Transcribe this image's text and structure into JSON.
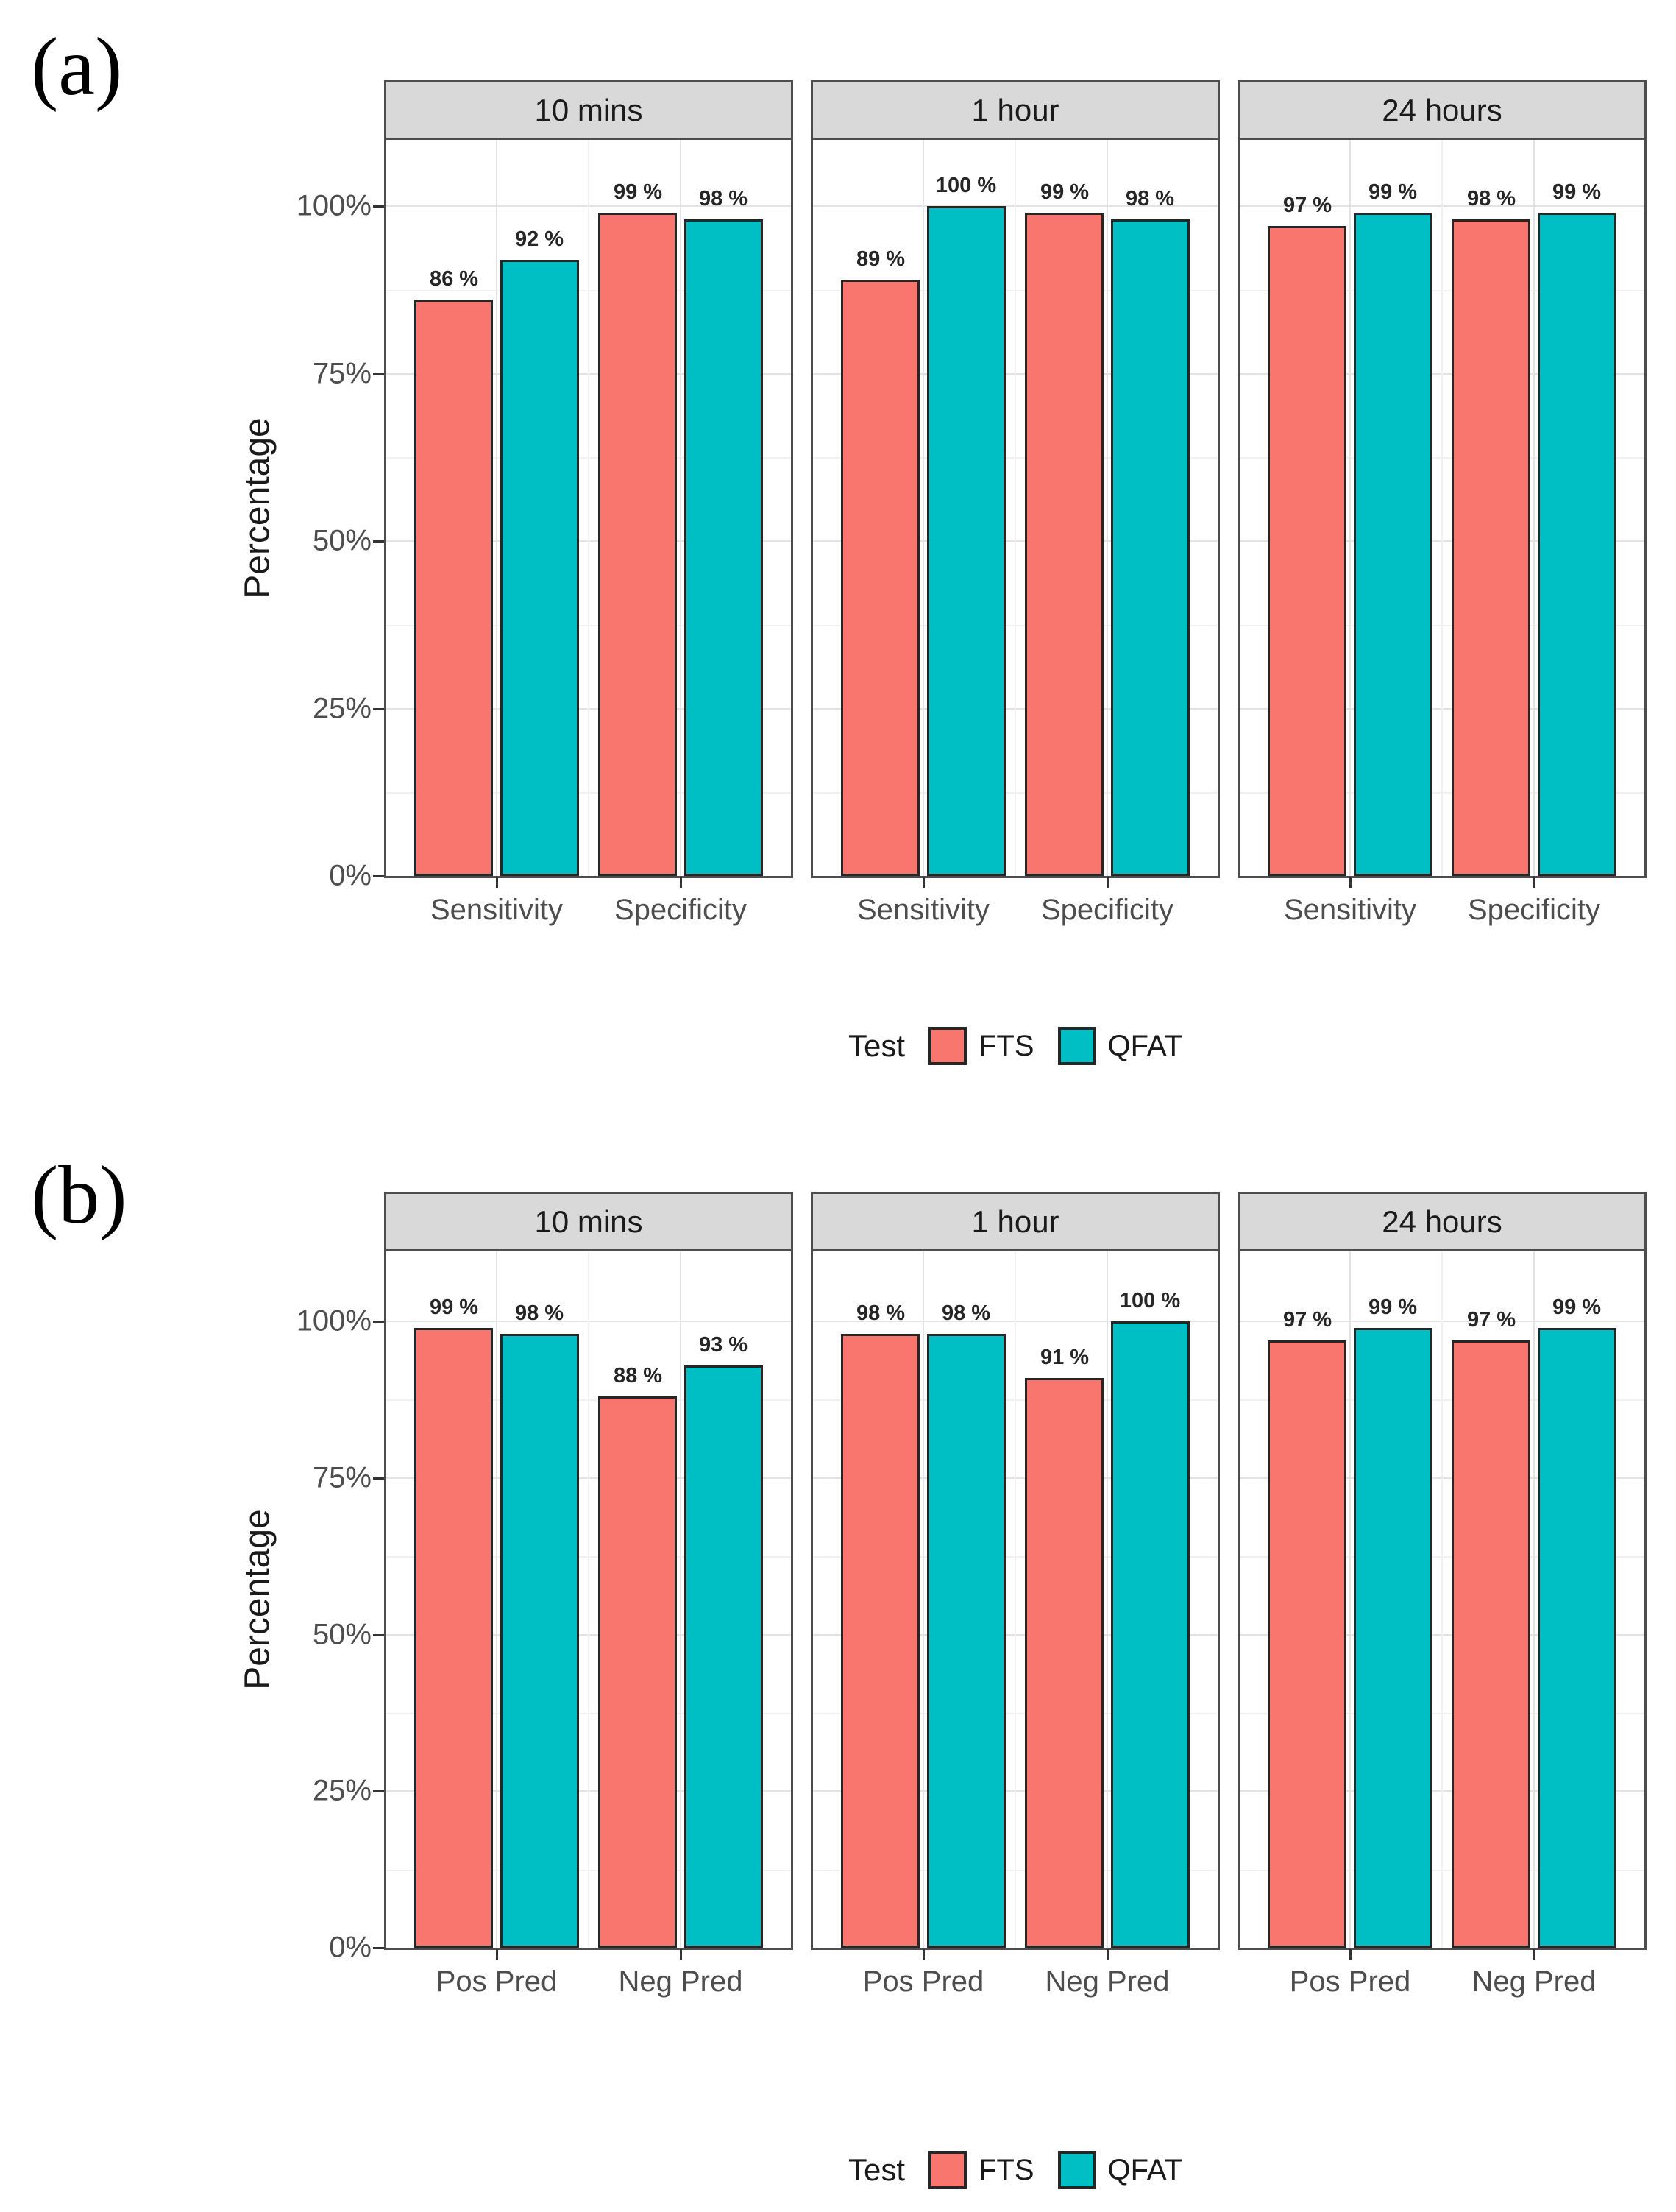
{
  "colors": {
    "fts": "#F8766D",
    "qfat": "#00BFC4",
    "bar_border": "#262626",
    "strip_fill": "#D9D9D9",
    "strip_border": "#4D4D4D",
    "panel_border": "#4D4D4D",
    "grid_major": "#E3E3E3",
    "grid_minor": "#F1F1F1",
    "axis_text": "#4D4D4D"
  },
  "chart_data": [
    {
      "id": "a",
      "figure_label": "(a)",
      "type": "bar",
      "ylabel": "Percentage",
      "ylim": [
        0,
        110
      ],
      "grid": true,
      "legend_position": "bottom",
      "yticks": [
        "0%",
        "25%",
        "50%",
        "75%",
        "100%"
      ],
      "ytick_values": [
        0,
        25,
        50,
        75,
        100
      ],
      "categories": [
        "Sensitivity",
        "Specificity"
      ],
      "facets": [
        {
          "title": "10 mins",
          "series": [
            {
              "name": "FTS",
              "values": [
                86,
                99
              ],
              "labels": [
                "86 %",
                "99 %"
              ]
            },
            {
              "name": "QFAT",
              "values": [
                92,
                98
              ],
              "labels": [
                "92 %",
                "98 %"
              ]
            }
          ]
        },
        {
          "title": "1 hour",
          "series": [
            {
              "name": "FTS",
              "values": [
                89,
                99
              ],
              "labels": [
                "89 %",
                "99 %"
              ]
            },
            {
              "name": "QFAT",
              "values": [
                100,
                98
              ],
              "labels": [
                "100 %",
                "98 %"
              ]
            }
          ]
        },
        {
          "title": "24 hours",
          "series": [
            {
              "name": "FTS",
              "values": [
                97,
                98
              ],
              "labels": [
                "97 %",
                "98 %"
              ]
            },
            {
              "name": "QFAT",
              "values": [
                99,
                99
              ],
              "labels": [
                "99 %",
                "99 %"
              ]
            }
          ]
        }
      ],
      "legend": {
        "title": "Test",
        "items": [
          "FTS",
          "QFAT"
        ]
      }
    },
    {
      "id": "b",
      "figure_label": "(b)",
      "type": "bar",
      "ylabel": "Percentage",
      "ylim": [
        0,
        110
      ],
      "grid": true,
      "legend_position": "bottom",
      "yticks": [
        "0%",
        "25%",
        "50%",
        "75%",
        "100%"
      ],
      "ytick_values": [
        0,
        25,
        50,
        75,
        100
      ],
      "categories": [
        "Pos Pred",
        "Neg Pred"
      ],
      "facets": [
        {
          "title": "10 mins",
          "series": [
            {
              "name": "FTS",
              "values": [
                99,
                88
              ],
              "labels": [
                "99 %",
                "88 %"
              ]
            },
            {
              "name": "QFAT",
              "values": [
                98,
                93
              ],
              "labels": [
                "98 %",
                "93 %"
              ]
            }
          ]
        },
        {
          "title": "1 hour",
          "series": [
            {
              "name": "FTS",
              "values": [
                98,
                91
              ],
              "labels": [
                "98 %",
                "91 %"
              ]
            },
            {
              "name": "QFAT",
              "values": [
                98,
                100
              ],
              "labels": [
                "98 %",
                "100 %"
              ]
            }
          ]
        },
        {
          "title": "24 hours",
          "series": [
            {
              "name": "FTS",
              "values": [
                97,
                97
              ],
              "labels": [
                "97 %",
                "97 %"
              ]
            },
            {
              "name": "QFAT",
              "values": [
                99,
                99
              ],
              "labels": [
                "99 %",
                "99 %"
              ]
            }
          ]
        }
      ],
      "legend": {
        "title": "Test",
        "items": [
          "FTS",
          "QFAT"
        ]
      }
    }
  ]
}
